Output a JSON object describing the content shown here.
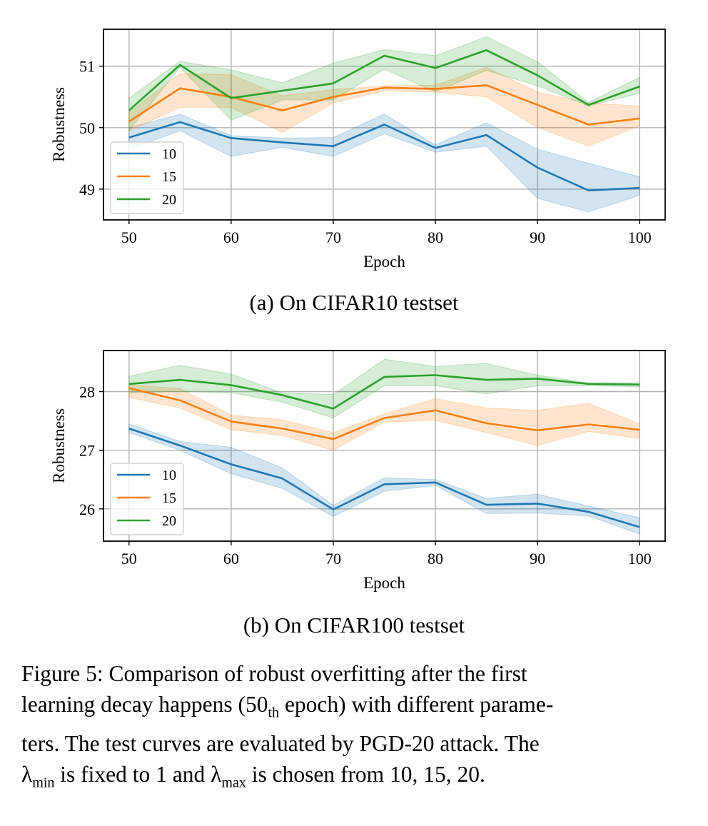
{
  "chart_data": [
    {
      "type": "line",
      "id": "a",
      "title": "",
      "subcaption": "(a) On CIFAR10 testset",
      "xlabel": "Epoch",
      "ylabel": "Robustness",
      "x": [
        50,
        55,
        60,
        65,
        70,
        75,
        80,
        85,
        90,
        95,
        100
      ],
      "xticks": [
        50,
        60,
        70,
        80,
        90,
        100
      ],
      "yticks": [
        49,
        50,
        51
      ],
      "xlim": [
        47.5,
        102.5
      ],
      "ylim": [
        48.5,
        51.6
      ],
      "grid": true,
      "legend_position": "lower-left",
      "series": [
        {
          "name": "10",
          "color": "#1f77b4",
          "values": [
            49.84,
            50.09,
            49.83,
            49.76,
            49.7,
            50.05,
            49.67,
            49.88,
            49.35,
            48.98,
            49.02
          ],
          "lower": [
            49.65,
            49.95,
            49.53,
            49.68,
            49.53,
            49.9,
            49.6,
            49.7,
            48.85,
            48.63,
            48.9
          ],
          "upper": [
            50.0,
            50.22,
            49.87,
            49.83,
            49.84,
            50.22,
            49.72,
            50.08,
            49.65,
            49.42,
            49.2
          ]
        },
        {
          "name": "15",
          "color": "#ff7f0e",
          "values": [
            50.1,
            50.64,
            50.5,
            50.28,
            50.5,
            50.65,
            50.63,
            50.69,
            50.37,
            50.05,
            50.15
          ],
          "lower": [
            49.95,
            50.33,
            50.33,
            49.92,
            50.4,
            50.6,
            50.58,
            50.5,
            50.0,
            49.7,
            50.03
          ],
          "upper": [
            50.25,
            50.88,
            50.86,
            50.52,
            50.62,
            50.68,
            50.69,
            50.98,
            50.58,
            50.4,
            50.35
          ]
        },
        {
          "name": "20",
          "color": "#2ca02c",
          "values": [
            50.28,
            51.02,
            50.48,
            50.6,
            50.72,
            51.17,
            50.97,
            51.26,
            50.85,
            50.37,
            50.67
          ],
          "lower": [
            49.95,
            50.98,
            50.12,
            50.45,
            50.45,
            50.95,
            50.58,
            50.93,
            50.68,
            50.35,
            50.56
          ],
          "upper": [
            50.48,
            51.08,
            50.94,
            50.73,
            51.05,
            51.27,
            51.17,
            51.48,
            51.07,
            50.41,
            50.82
          ]
        }
      ]
    },
    {
      "type": "line",
      "id": "b",
      "title": "",
      "subcaption": "(b) On CIFAR100 testset",
      "xlabel": "Epoch",
      "ylabel": "Robustness",
      "x": [
        50,
        55,
        60,
        65,
        70,
        75,
        80,
        85,
        90,
        95,
        100
      ],
      "xticks": [
        50,
        60,
        70,
        80,
        90,
        100
      ],
      "yticks": [
        26,
        27,
        28
      ],
      "xlim": [
        47.5,
        102.5
      ],
      "ylim": [
        25.45,
        28.7
      ],
      "grid": true,
      "legend_position": "lower-left",
      "series": [
        {
          "name": "10",
          "color": "#1f77b4",
          "values": [
            27.37,
            27.08,
            26.76,
            26.52,
            25.99,
            26.42,
            26.45,
            26.07,
            26.09,
            25.95,
            25.69
          ],
          "lower": [
            27.3,
            27.0,
            26.6,
            26.35,
            25.87,
            26.3,
            26.4,
            25.92,
            25.93,
            25.88,
            25.57
          ],
          "upper": [
            27.45,
            27.15,
            27.05,
            26.7,
            26.06,
            26.53,
            26.5,
            26.18,
            26.25,
            26.05,
            25.85
          ]
        },
        {
          "name": "15",
          "color": "#ff7f0e",
          "values": [
            28.06,
            27.85,
            27.49,
            27.37,
            27.19,
            27.55,
            27.68,
            27.46,
            27.34,
            27.44,
            27.35
          ],
          "lower": [
            27.9,
            27.72,
            27.35,
            27.25,
            27.0,
            27.48,
            27.51,
            27.3,
            27.08,
            27.32,
            27.2
          ],
          "upper": [
            28.12,
            28.05,
            27.6,
            27.52,
            27.3,
            27.62,
            27.88,
            27.72,
            27.68,
            27.8,
            27.45
          ]
        },
        {
          "name": "20",
          "color": "#2ca02c",
          "values": [
            28.13,
            28.2,
            28.11,
            27.94,
            27.71,
            28.25,
            28.28,
            28.2,
            28.22,
            28.13,
            28.12
          ],
          "lower": [
            27.98,
            28.0,
            27.98,
            27.82,
            27.55,
            28.1,
            28.1,
            27.96,
            28.1,
            28.1,
            28.08
          ],
          "upper": [
            28.26,
            28.45,
            28.3,
            27.98,
            27.95,
            28.55,
            28.43,
            28.48,
            28.28,
            28.15,
            28.15
          ]
        }
      ]
    }
  ],
  "caption": {
    "line1": "Figure 5:  Comparison of robust overfitting after the first",
    "line2_pre": "learning decay happens (50",
    "line2_sub": "th",
    "line2_post": " epoch) with different parame-",
    "line3": "ters.  The test curves are evaluated by PGD-20 attack.  The",
    "line4_lambda1": "λ",
    "line4_sub1": "min",
    "line4_mid": " is fixed to 1 and ",
    "line4_lambda2": "λ",
    "line4_sub2": "max",
    "line4_post": " is chosen from 10, 15, 20."
  }
}
